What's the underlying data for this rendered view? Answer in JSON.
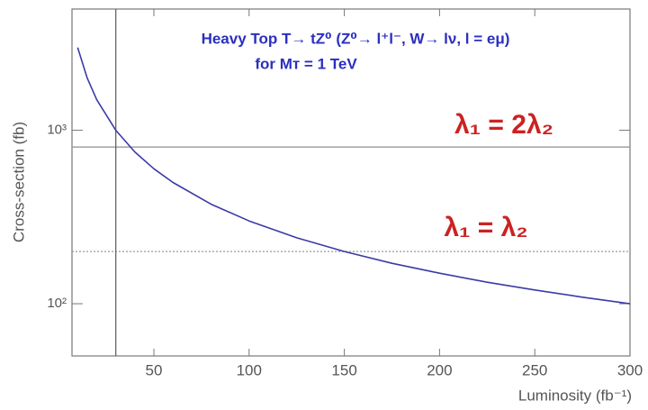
{
  "chart_data": {
    "type": "line",
    "title": "Heavy Top T→ tZ⁰ (Z⁰→ l⁺l⁻, W→ lν, l = eμ)",
    "subtitle": "for Mᴛ = 1 TeV",
    "xlabel": "Luminosity (fb⁻¹)",
    "ylabel": "Cross-section (fb)",
    "x": [
      10,
      15,
      20,
      30,
      40,
      50,
      60,
      80,
      100,
      125,
      150,
      175,
      200,
      225,
      250,
      275,
      300
    ],
    "series": [
      {
        "color": "#3b3ba6",
        "values": [
          3000,
          2000,
          1500,
          1000,
          750,
          600,
          500,
          375,
          300,
          240,
          200,
          171,
          150,
          133,
          120,
          109,
          100
        ]
      }
    ],
    "xlim": [
      7,
      300
    ],
    "ylim": [
      50,
      5000
    ],
    "ylog": true,
    "xticks": [
      50,
      100,
      150,
      200,
      250,
      300
    ],
    "yticks": [
      {
        "value": 100,
        "label": "10²"
      },
      {
        "value": 1000,
        "label": "10³"
      }
    ],
    "hlines": [
      {
        "value": 800,
        "style": "solid"
      },
      {
        "value": 200,
        "style": "dotted"
      }
    ],
    "vlines": [
      30
    ],
    "annotations": [
      {
        "text": "λ₁ = 2λ₂",
        "color": "#cc2222"
      },
      {
        "text": "λ₁ = λ₂",
        "color": "#cc2222"
      }
    ],
    "title_color": "#2a2fc0"
  }
}
